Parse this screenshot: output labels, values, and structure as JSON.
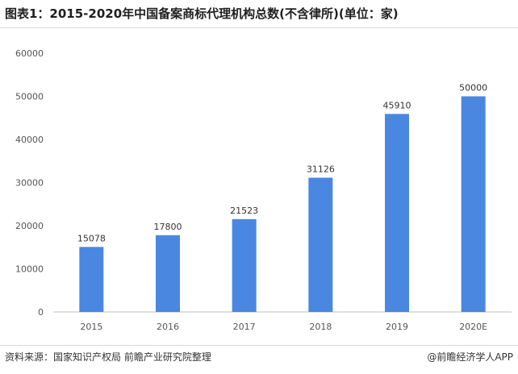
{
  "header": {
    "title": "图表1：2015-2020年中国备案商标代理机构总数(不含律所)(单位：家)"
  },
  "footer": {
    "source": "资料来源：国家知识产权局 前瞻产业研究院整理",
    "credit": "@前瞻经济学人APP"
  },
  "chart_data": {
    "type": "bar",
    "title": "图表1：2015-2020年中国备案商标代理机构总数(不含律所)(单位：家)",
    "categories": [
      "2015",
      "2016",
      "2017",
      "2018",
      "2019",
      "2020E"
    ],
    "values": [
      15078,
      17800,
      21523,
      31126,
      45910,
      50000
    ],
    "ylim": [
      0,
      60000
    ],
    "yticks": [
      0,
      10000,
      20000,
      30000,
      40000,
      50000,
      60000
    ],
    "grid": false,
    "legend": "none",
    "bar_color": "#4a87e0"
  }
}
